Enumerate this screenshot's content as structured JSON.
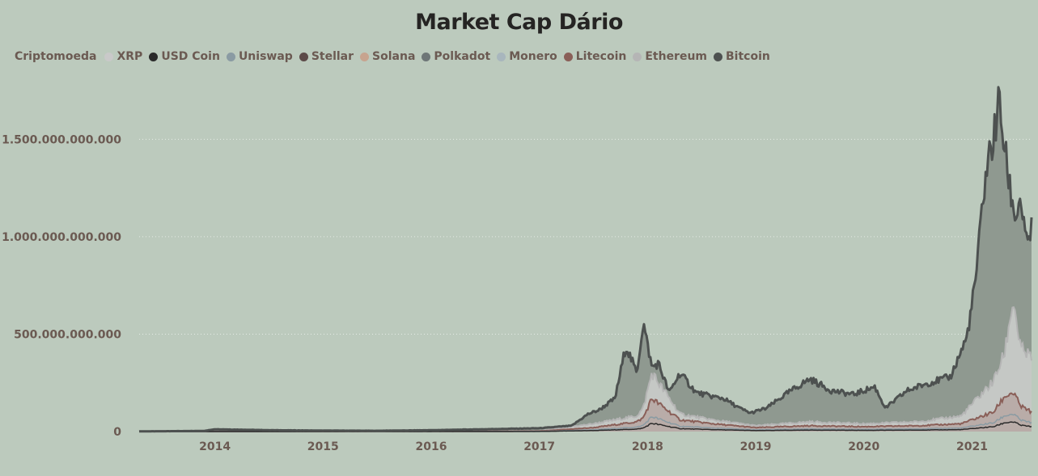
{
  "chart_data": {
    "type": "area",
    "title": "Market Cap Dário",
    "legend_title": "Criptomoeda",
    "legend_position": "top-left",
    "grid": true,
    "xlabel": "",
    "ylabel": "",
    "ylim": [
      0,
      1800000000000
    ],
    "y_ticks": [
      0,
      500000000000,
      1000000000000,
      1500000000000
    ],
    "y_tick_labels": [
      "0",
      "500.000.000.000",
      "1.000.000.000.000",
      "1.500.000.000.000"
    ],
    "x_ticks": [
      "2014",
      "2015",
      "2016",
      "2017",
      "2018",
      "2019",
      "2020",
      "2021"
    ],
    "x_range": [
      2013.3,
      2021.55
    ],
    "stacked": true,
    "series": [
      {
        "name": "XRP",
        "color": "#c9c9c9"
      },
      {
        "name": "USD Coin",
        "color": "#2b2b2b"
      },
      {
        "name": "Uniswap",
        "color": "#8a9ba3"
      },
      {
        "name": "Stellar",
        "color": "#5c4a48"
      },
      {
        "name": "Solana",
        "color": "#c7a48f"
      },
      {
        "name": "Polkadot",
        "color": "#6e7677"
      },
      {
        "name": "Monero",
        "color": "#a8b6bd"
      },
      {
        "name": "Litecoin",
        "color": "#8a5f58"
      },
      {
        "name": "Ethereum",
        "color": "#b5b5b5"
      },
      {
        "name": "Bitcoin",
        "color": "#4d5150"
      }
    ],
    "total_market_cap": {
      "x": [
        2013.3,
        2013.9,
        2014.0,
        2014.5,
        2015.0,
        2015.5,
        2016.0,
        2016.5,
        2017.0,
        2017.3,
        2017.45,
        2017.55,
        2017.7,
        2017.8,
        2017.9,
        2017.96,
        2018.04,
        2018.1,
        2018.2,
        2018.3,
        2018.45,
        2018.6,
        2018.7,
        2018.85,
        2018.95,
        2019.1,
        2019.3,
        2019.5,
        2019.7,
        2019.9,
        2020.1,
        2020.2,
        2020.4,
        2020.6,
        2020.8,
        2020.95,
        2021.0,
        2021.05,
        2021.1,
        2021.15,
        2021.2,
        2021.25,
        2021.3,
        2021.35,
        2021.4,
        2021.45,
        2021.5,
        2021.55
      ],
      "y": [
        1000000000,
        3000000000,
        12000000000,
        7000000000,
        5000000000,
        4000000000,
        7000000000,
        12000000000,
        17000000000,
        30000000000,
        90000000000,
        110000000000,
        170000000000,
        440000000000,
        300000000000,
        560000000000,
        330000000000,
        350000000000,
        200000000000,
        300000000000,
        200000000000,
        180000000000,
        170000000000,
        120000000000,
        95000000000,
        120000000000,
        200000000000,
        270000000000,
        210000000000,
        190000000000,
        230000000000,
        120000000000,
        210000000000,
        250000000000,
        280000000000,
        480000000000,
        650000000000,
        860000000000,
        1200000000000,
        1400000000000,
        1500000000000,
        1700000000000,
        1450000000000,
        1250000000000,
        1100000000000,
        1200000000000,
        950000000000,
        1040000000000
      ]
    },
    "ethereum_and_altcoins_cap": {
      "x": [
        2013.3,
        2016.5,
        2017.0,
        2017.5,
        2017.9,
        2017.96,
        2018.04,
        2018.3,
        2018.6,
        2019.0,
        2019.5,
        2020.0,
        2020.5,
        2020.9,
        2021.0,
        2021.1,
        2021.2,
        2021.3,
        2021.38,
        2021.45,
        2021.55
      ],
      "y": [
        0,
        2000000000,
        3000000000,
        40000000000,
        80000000000,
        120000000000,
        300000000000,
        90000000000,
        60000000000,
        30000000000,
        50000000000,
        40000000000,
        50000000000,
        80000000000,
        140000000000,
        200000000000,
        260000000000,
        400000000000,
        680000000000,
        420000000000,
        380000000000
      ]
    },
    "litecoin_layer_cap": {
      "x": [
        2013.3,
        2016.5,
        2017.0,
        2017.5,
        2017.9,
        2017.96,
        2018.04,
        2018.3,
        2018.6,
        2019.0,
        2019.5,
        2020.0,
        2020.5,
        2020.9,
        2021.0,
        2021.2,
        2021.3,
        2021.38,
        2021.45,
        2021.55
      ],
      "y": [
        0,
        1000000000,
        2000000000,
        20000000000,
        50000000000,
        70000000000,
        170000000000,
        60000000000,
        40000000000,
        20000000000,
        30000000000,
        25000000000,
        30000000000,
        40000000000,
        60000000000,
        100000000000,
        180000000000,
        200000000000,
        130000000000,
        100000000000
      ]
    }
  }
}
